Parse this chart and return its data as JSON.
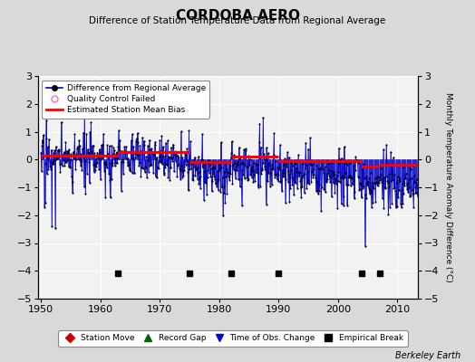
{
  "title": "CORDOBA AERO",
  "subtitle": "Difference of Station Temperature Data from Regional Average",
  "ylabel_right": "Monthly Temperature Anomaly Difference (°C)",
  "year_start": 1950,
  "year_end": 2014,
  "ylim": [
    -5,
    3
  ],
  "yticks": [
    -5,
    -4,
    -3,
    -2,
    -1,
    0,
    1,
    2,
    3
  ],
  "xticks": [
    1950,
    1960,
    1970,
    1980,
    1990,
    2000,
    2010
  ],
  "bg_color": "#d9d9d9",
  "plot_bg_color": "#f2f2f2",
  "grid_color": "#ffffff",
  "line_color": "#0000cc",
  "dot_color": "#000000",
  "bias_color": "#ff0000",
  "empirical_breaks": [
    1963,
    1975,
    1982,
    1990,
    2004,
    2007
  ],
  "bias_levels": [
    0.15,
    0.28,
    -0.1,
    0.1,
    -0.05,
    -0.25,
    -0.2
  ],
  "berkeley_earth_text": "Berkeley Earth"
}
